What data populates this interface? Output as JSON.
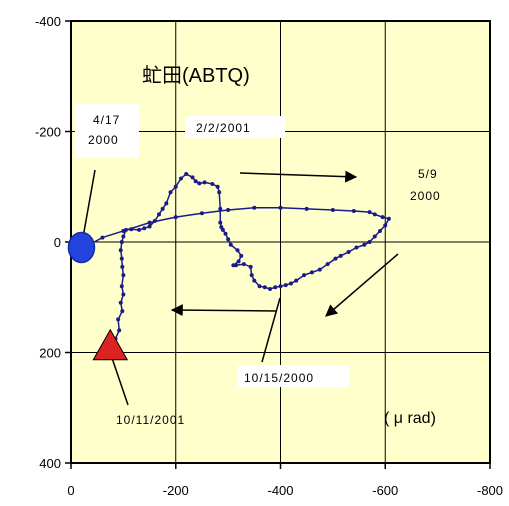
{
  "chart_data": {
    "type": "line",
    "title": "虻田(ABTQ)",
    "unit_label": "( μ rad)",
    "xlim": [
      0,
      -800
    ],
    "ylim": [
      -400,
      400
    ],
    "x_ticks": [
      0,
      -200,
      -400,
      -600,
      -800
    ],
    "y_ticks": [
      -400,
      -200,
      0,
      200,
      400
    ],
    "x_tick_labels": [
      "0",
      "-200",
      "-400",
      "-600",
      "-800"
    ],
    "y_tick_labels": [
      "-400",
      "-200",
      "0",
      "200",
      "400"
    ],
    "grid": true,
    "background_color": "#ffffcc",
    "series_color": "#1a1a8c",
    "series": [
      {
        "points": [
          [
            -25,
            10
          ],
          [
            -60,
            -8
          ],
          [
            -100,
            -20
          ],
          [
            -150,
            -35
          ],
          [
            -200,
            -45
          ],
          [
            -250,
            -52
          ],
          [
            -300,
            -58
          ],
          [
            -350,
            -62
          ],
          [
            -400,
            -62
          ],
          [
            -450,
            -60
          ],
          [
            -500,
            -58
          ],
          [
            -540,
            -56
          ],
          [
            -570,
            -54
          ],
          [
            -580,
            -50
          ],
          [
            -595,
            -45
          ],
          [
            -607,
            -42
          ],
          [
            -600,
            -30
          ],
          [
            -590,
            -20
          ],
          [
            -580,
            -10
          ],
          [
            -570,
            0
          ],
          [
            -560,
            5
          ],
          [
            -545,
            10
          ],
          [
            -530,
            18
          ],
          [
            -515,
            25
          ],
          [
            -505,
            30
          ],
          [
            -490,
            40
          ],
          [
            -475,
            50
          ],
          [
            -460,
            55
          ],
          [
            -445,
            60
          ],
          [
            -430,
            70
          ],
          [
            -420,
            75
          ],
          [
            -410,
            78
          ],
          [
            -400,
            80
          ],
          [
            -390,
            82
          ],
          [
            -380,
            85
          ],
          [
            -370,
            82
          ],
          [
            -360,
            80
          ],
          [
            -350,
            70
          ],
          [
            -345,
            60
          ],
          [
            -343,
            45
          ],
          [
            -330,
            40
          ],
          [
            -315,
            42
          ],
          [
            -310,
            42
          ],
          [
            -320,
            35
          ],
          [
            -325,
            25
          ],
          [
            -318,
            15
          ],
          [
            -305,
            5
          ],
          [
            -300,
            -5
          ],
          [
            -295,
            -15
          ],
          [
            -290,
            -22
          ],
          [
            -287,
            -27
          ],
          [
            -285,
            -35
          ],
          [
            -285,
            -60
          ],
          [
            -283,
            -90
          ],
          [
            -280,
            -100
          ],
          [
            -270,
            -105
          ],
          [
            -255,
            -108
          ],
          [
            -245,
            -106
          ],
          [
            -238,
            -110
          ],
          [
            -232,
            -117
          ],
          [
            -220,
            -123
          ],
          [
            -210,
            -115
          ],
          [
            -200,
            -100
          ],
          [
            -190,
            -90
          ],
          [
            -182,
            -70
          ],
          [
            -175,
            -60
          ],
          [
            -168,
            -50
          ],
          [
            -160,
            -38
          ],
          [
            -150,
            -28
          ],
          [
            -140,
            -25
          ],
          [
            -130,
            -22
          ],
          [
            -115,
            -23
          ],
          [
            -105,
            -22
          ],
          [
            -100,
            -10
          ],
          [
            -97,
            0
          ],
          [
            -95,
            15
          ],
          [
            -97,
            30
          ],
          [
            -98,
            45
          ],
          [
            -100,
            60
          ],
          [
            -97,
            80
          ],
          [
            -100,
            95
          ],
          [
            -95,
            110
          ],
          [
            -98,
            125
          ],
          [
            -90,
            140
          ],
          [
            -92,
            160
          ],
          [
            -85,
            175
          ],
          [
            -80,
            190
          ],
          [
            -70,
            205
          ]
        ]
      }
    ],
    "annotations": [
      {
        "text": "2/2/2001"
      },
      {
        "text": "5/9"
      },
      {
        "text": "2000"
      },
      {
        "text": "10/15/2000"
      },
      {
        "text": "10/11/2001"
      }
    ],
    "start_label": {
      "line1": "4/17",
      "line2": "2000"
    },
    "start_marker": {
      "x": -20,
      "y": 10,
      "color": "#2244dd"
    },
    "end_marker": {
      "x": -75,
      "y": 195,
      "color": "#dd2222"
    }
  }
}
